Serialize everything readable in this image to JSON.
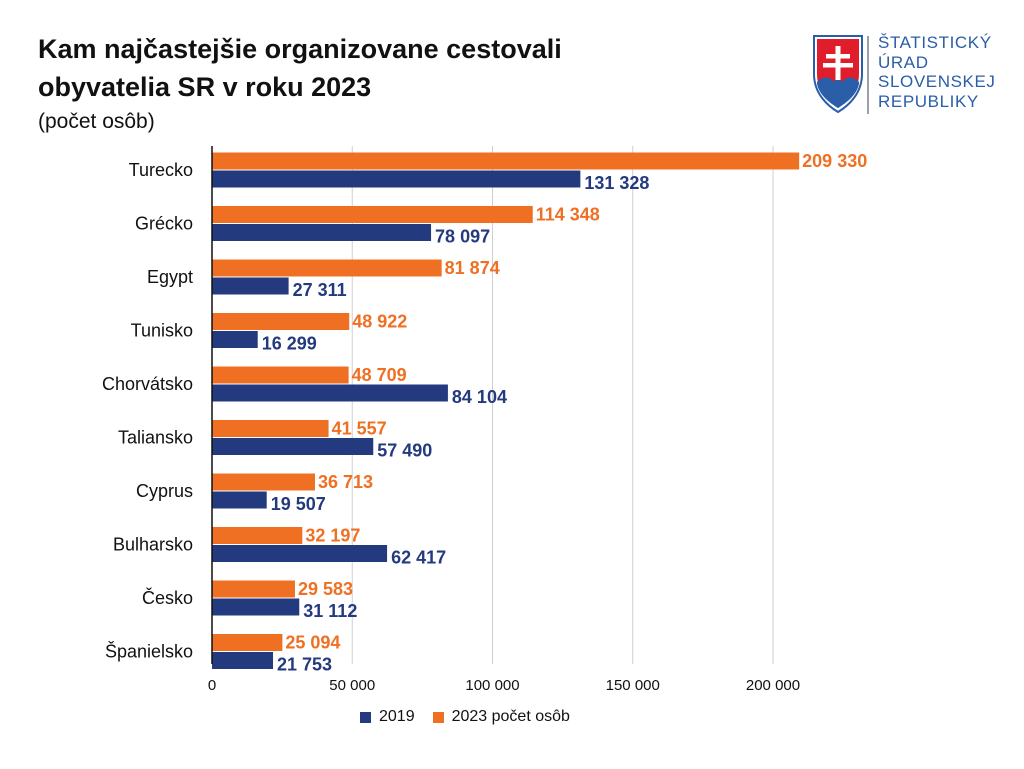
{
  "header": {
    "title_line1": "Kam najčastejšie organizovane cestovali",
    "title_line2": "obyvatelia SR v roku 2023",
    "subtitle": "(počet osôb)"
  },
  "logo": {
    "line1": "ŠTATISTICKÝ",
    "line2": "ÚRAD",
    "line3": "SLOVENSKEJ",
    "line4": "REPUBLIKY",
    "icon": "slovak-coat-of-arms",
    "text_color": "#2a5ea8"
  },
  "colors": {
    "series_2019": "#243a7e",
    "series_2023": "#f07023",
    "label_2019": "#243a7e",
    "label_2023": "#f07023",
    "grid": "#cfcfcf",
    "axis": "#111111"
  },
  "legend": {
    "item1": "2019",
    "item2": "2023 počet osôb"
  },
  "chart_data": {
    "type": "bar",
    "orientation": "horizontal",
    "title": "Kam najčastejšie organizovane cestovali obyvatelia SR v roku 2023",
    "subtitle": "(počet osôb)",
    "xlabel": "",
    "ylabel": "",
    "xlim": [
      0,
      200000
    ],
    "xticks": [
      0,
      50000,
      100000,
      150000,
      200000
    ],
    "xtick_labels": [
      "0",
      "50 000",
      "100 000",
      "150 000",
      "200 000"
    ],
    "grid": "vertical",
    "legend_position": "bottom",
    "categories": [
      "Turecko",
      "Grécko",
      "Egypt",
      "Tunisko",
      "Chorvátsko",
      "Taliansko",
      "Cyprus",
      "Bulharsko",
      "Česko",
      "Španielsko"
    ],
    "series": [
      {
        "name": "2023 počet osôb",
        "values": [
          209330,
          114348,
          81874,
          48922,
          48709,
          41557,
          36713,
          32197,
          29583,
          25094
        ],
        "labels": [
          "209 330",
          "114 348",
          "81 874",
          "48 922",
          "48 709",
          "41 557",
          "36 713",
          "32 197",
          "29 583",
          "25 094"
        ]
      },
      {
        "name": "2019",
        "values": [
          131328,
          78097,
          27311,
          16299,
          84104,
          57490,
          19507,
          62417,
          31112,
          21753
        ],
        "labels": [
          "131 328",
          "78 097",
          "27 311",
          "16 299",
          "84 104",
          "57 490",
          "19 507",
          "62 417",
          "31 112",
          "21 753"
        ]
      }
    ]
  }
}
